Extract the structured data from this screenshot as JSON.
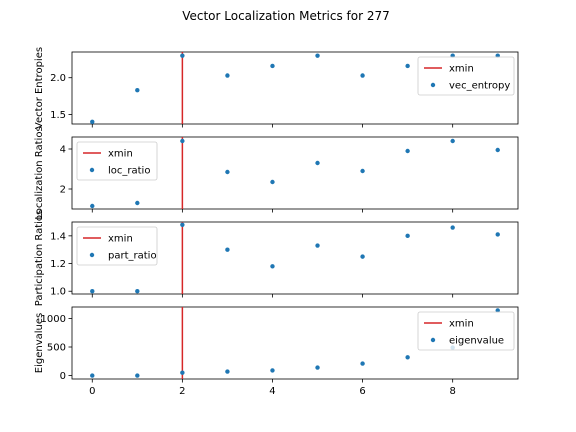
{
  "chart_data": {
    "type": "scatter",
    "title": "Vector Localization Metrics for 277",
    "x_ticks": [
      0,
      2,
      4,
      6,
      8
    ],
    "xlim": [
      -0.45,
      9.45
    ],
    "panels": [
      {
        "ylabel": "Vector Entropies",
        "ylim": [
          1.37,
          2.35
        ],
        "y_ticks": [
          1.5,
          2.0
        ],
        "y_tick_labels": [
          "1.5",
          "2.0"
        ],
        "legend_loc": "upper-right",
        "vline": {
          "name": "xmin",
          "x": 2,
          "color": "#d62728"
        },
        "series": [
          {
            "name": "vec_entropy",
            "color": "#1f77b4",
            "x": [
              0,
              1,
              2,
              3,
              4,
              5,
              6,
              7,
              8,
              9
            ],
            "y": [
              1.4,
              1.83,
              2.3,
              2.03,
              2.16,
              2.3,
              2.03,
              2.16,
              2.3,
              2.3
            ]
          }
        ]
      },
      {
        "ylabel": "Localization Ratios",
        "ylim": [
          1.0,
          4.6
        ],
        "y_ticks": [
          2,
          4
        ],
        "y_tick_labels": [
          "2",
          "4"
        ],
        "legend_loc": "upper-left",
        "vline": {
          "name": "xmin",
          "x": 2,
          "color": "#d62728"
        },
        "series": [
          {
            "name": "loc_ratio",
            "color": "#1f77b4",
            "x": [
              0,
              1,
              2,
              3,
              4,
              5,
              6,
              7,
              8,
              9
            ],
            "y": [
              1.15,
              1.3,
              4.4,
              2.85,
              2.35,
              3.3,
              2.9,
              3.9,
              4.4,
              3.95
            ]
          }
        ]
      },
      {
        "ylabel": "Participation Ratios",
        "ylim": [
          0.98,
          1.5
        ],
        "y_ticks": [
          1.0,
          1.2,
          1.4
        ],
        "y_tick_labels": [
          "1.0",
          "1.2",
          "1.4"
        ],
        "legend_loc": "upper-left",
        "vline": {
          "name": "xmin",
          "x": 2,
          "color": "#d62728"
        },
        "series": [
          {
            "name": "part_ratio",
            "color": "#1f77b4",
            "x": [
              0,
              1,
              2,
              3,
              4,
              5,
              6,
              7,
              8,
              9
            ],
            "y": [
              1.0,
              1.0,
              1.48,
              1.3,
              1.18,
              1.33,
              1.25,
              1.4,
              1.46,
              1.41
            ]
          }
        ]
      },
      {
        "ylabel": "Eigenvalues",
        "ylim": [
          -60,
          1200
        ],
        "y_ticks": [
          0,
          500,
          1000
        ],
        "y_tick_labels": [
          "0",
          "500",
          "1000"
        ],
        "legend_loc": "upper-right",
        "vline": {
          "name": "xmin",
          "x": 2,
          "color": "#d62728"
        },
        "series": [
          {
            "name": "eigenvalue",
            "color": "#1f77b4",
            "x": [
              0,
              1,
              2,
              3,
              4,
              5,
              6,
              7,
              8,
              9
            ],
            "y": [
              0,
              0,
              50,
              70,
              90,
              140,
              210,
              320,
              490,
              1140
            ]
          }
        ]
      }
    ]
  }
}
